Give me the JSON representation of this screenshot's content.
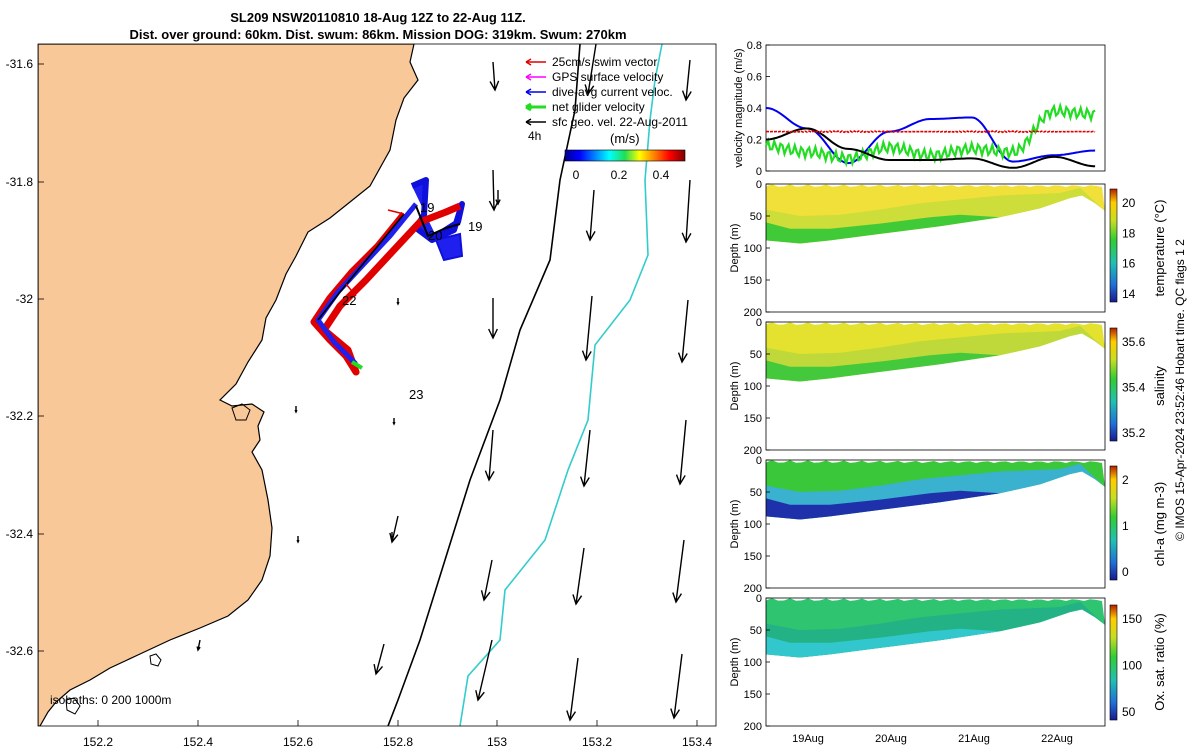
{
  "title_line1": "SL209 NSW20110810 18-Aug 12Z to 22-Aug 11Z.",
  "title_line2": "Dist. over ground: 60km. Dist. swum: 86km. Mission DOG: 319km. Swum: 270km",
  "credit": "© IMOS 15-Apr-2024 23:52:46 Hobart time. QC flags 1  2",
  "map": {
    "xticks": [
      "152.2",
      "152.4",
      "152.6",
      "152.8",
      "153",
      "153.2",
      "153.4"
    ],
    "yticks": [
      "-31.6",
      "-31.8",
      "-32",
      "-32.2",
      "-32.4",
      "-32.6"
    ],
    "legend": [
      {
        "label": "25cm/s swim vector",
        "color": "#e00000"
      },
      {
        "label": "GPS surface velocity",
        "color": "#ff00ff"
      },
      {
        "label": "dive-avg current veloc.",
        "color": "#0000ee"
      },
      {
        "label": "net glider velocity",
        "color": "#22dd22"
      },
      {
        "label": "sfc geo. vel. 22-Aug-2011",
        "color": "#000000"
      }
    ],
    "legend_note": "4h",
    "colorbar": {
      "label": "(m/s)",
      "ticks": [
        "0",
        "0.2",
        "0.4"
      ]
    },
    "day_labels": [
      "19",
      "20",
      "21",
      "22",
      "23"
    ],
    "isobaths_label": "isobaths: 0   200  1000m",
    "land_color": "#f8c898",
    "isobath_200_color": "#000000",
    "isobath_1000_color": "#33cccc"
  },
  "velocity_panel": {
    "ylabel": "velocity magnitude (m/s)",
    "yticks": [
      "0",
      "0.2",
      "0.4",
      "0.6",
      "0.8"
    ],
    "ylim": [
      0,
      0.8
    ]
  },
  "section_panels": [
    {
      "cbar_label": "temperature (°C)",
      "cbar_ticks": [
        "20",
        "18",
        "16",
        "14"
      ],
      "ylabel": "Depth (m)",
      "yticks": [
        "0",
        "50",
        "100",
        "150",
        "200"
      ]
    },
    {
      "cbar_label": "salinity",
      "cbar_ticks": [
        "35.6",
        "35.4",
        "35.2"
      ],
      "ylabel": "Depth (m)",
      "yticks": [
        "0",
        "50",
        "100",
        "150",
        "200"
      ]
    },
    {
      "cbar_label": "chl-a (mg m-3)",
      "cbar_ticks": [
        "2",
        "1",
        "0"
      ],
      "ylabel": "Depth (m)",
      "yticks": [
        "0",
        "50",
        "100",
        "150",
        "200"
      ]
    },
    {
      "cbar_label": "Ox. sat. ratio (%)",
      "cbar_ticks": [
        "150",
        "100",
        "50"
      ],
      "ylabel": "Depth (m)",
      "yticks": [
        "0",
        "50",
        "100",
        "150",
        "200"
      ]
    }
  ],
  "time_ticks": [
    "19Aug",
    "20Aug",
    "21Aug",
    "22Aug"
  ],
  "chart_data": [
    {
      "type": "line",
      "title": "",
      "xlabel": "",
      "ylabel": "velocity magnitude (m/s)",
      "ylim": [
        0,
        0.8
      ],
      "x": [
        18.5,
        19.0,
        19.5,
        20.0,
        20.5,
        21.0,
        21.5,
        22.0,
        22.5
      ],
      "series": [
        {
          "name": "",
          "color": "#0000ee",
          "values": [
            0.4,
            0.27,
            0.05,
            0.25,
            0.33,
            0.34,
            0.06,
            0.1,
            0.13
          ]
        },
        {
          "name": "",
          "color": "#22dd22",
          "values": [
            0.16,
            0.12,
            0.08,
            0.15,
            0.1,
            0.14,
            0.12,
            0.38,
            0.36
          ]
        },
        {
          "name": "",
          "color": "#000000",
          "values": [
            0.2,
            0.27,
            0.14,
            0.07,
            0.07,
            0.08,
            0.02,
            0.09,
            0.03
          ]
        },
        {
          "name": "",
          "color": "#e00000",
          "values": [
            0.25,
            0.25,
            0.25,
            0.25,
            0.25,
            0.25,
            0.25,
            0.25,
            0.25
          ]
        }
      ]
    }
  ]
}
